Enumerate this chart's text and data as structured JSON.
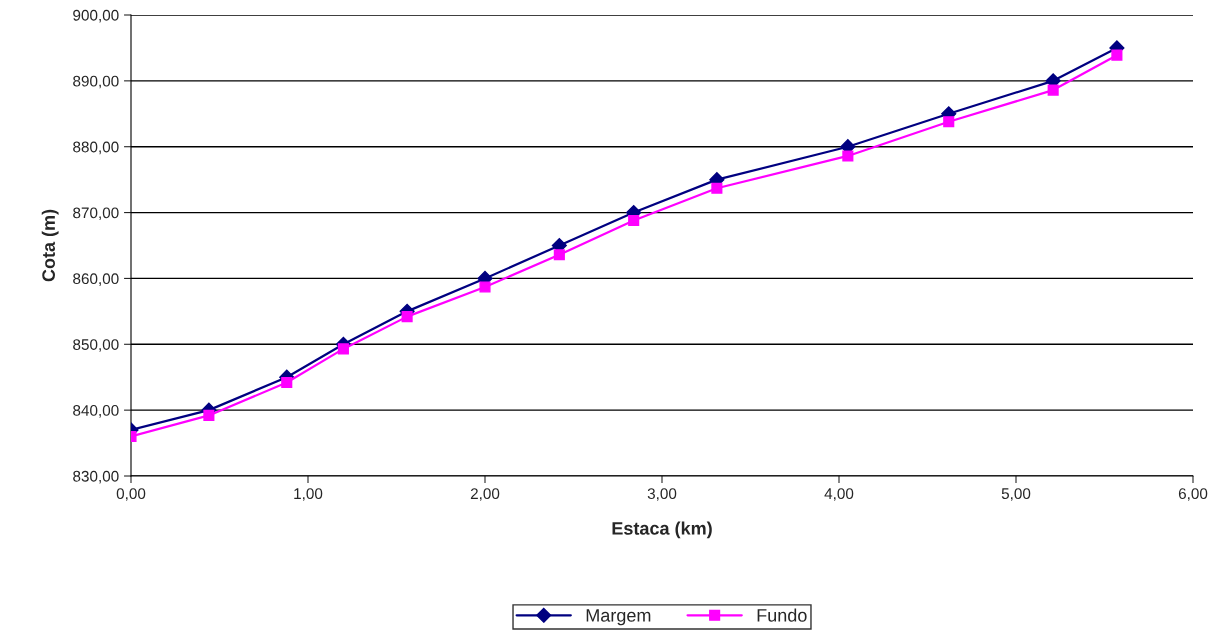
{
  "chart_data": {
    "type": "line",
    "xlabel": "Estaca (km)",
    "ylabel": "Cota (m)",
    "xlim": [
      0,
      6
    ],
    "xticks": [
      {
        "value": 0,
        "label": "0,00"
      },
      {
        "value": 1,
        "label": "1,00"
      },
      {
        "value": 2,
        "label": "2,00"
      },
      {
        "value": 3,
        "label": "3,00"
      },
      {
        "value": 4,
        "label": "4,00"
      },
      {
        "value": 5,
        "label": "5,00"
      },
      {
        "value": 6,
        "label": "6,00"
      }
    ],
    "ylim": [
      830,
      900
    ],
    "yticks": [
      {
        "value": 830,
        "label": "830,00"
      },
      {
        "value": 840,
        "label": "840,00"
      },
      {
        "value": 850,
        "label": "850,00"
      },
      {
        "value": 860,
        "label": "860,00"
      },
      {
        "value": 870,
        "label": "870,00"
      },
      {
        "value": 880,
        "label": "880,00"
      },
      {
        "value": 890,
        "label": "890,00"
      },
      {
        "value": 900,
        "label": "900,00"
      }
    ],
    "x": [
      0,
      0.44,
      0.88,
      1.2,
      1.56,
      2.0,
      2.42,
      2.84,
      3.31,
      4.05,
      4.62,
      5.21,
      5.57
    ],
    "series": [
      {
        "name": "Margem",
        "color": "#000080",
        "marker": "diamond",
        "values": [
          837,
          840,
          845,
          850,
          855,
          860,
          865,
          870,
          875,
          880,
          885,
          890,
          895
        ]
      },
      {
        "name": "Fundo",
        "color": "#ff00ff",
        "marker": "square",
        "values": [
          836,
          839.2,
          844.2,
          849.3,
          854.2,
          858.7,
          863.6,
          868.8,
          873.7,
          878.6,
          883.8,
          888.6,
          893.9
        ]
      }
    ],
    "grid": "y",
    "legend": "bottom"
  }
}
